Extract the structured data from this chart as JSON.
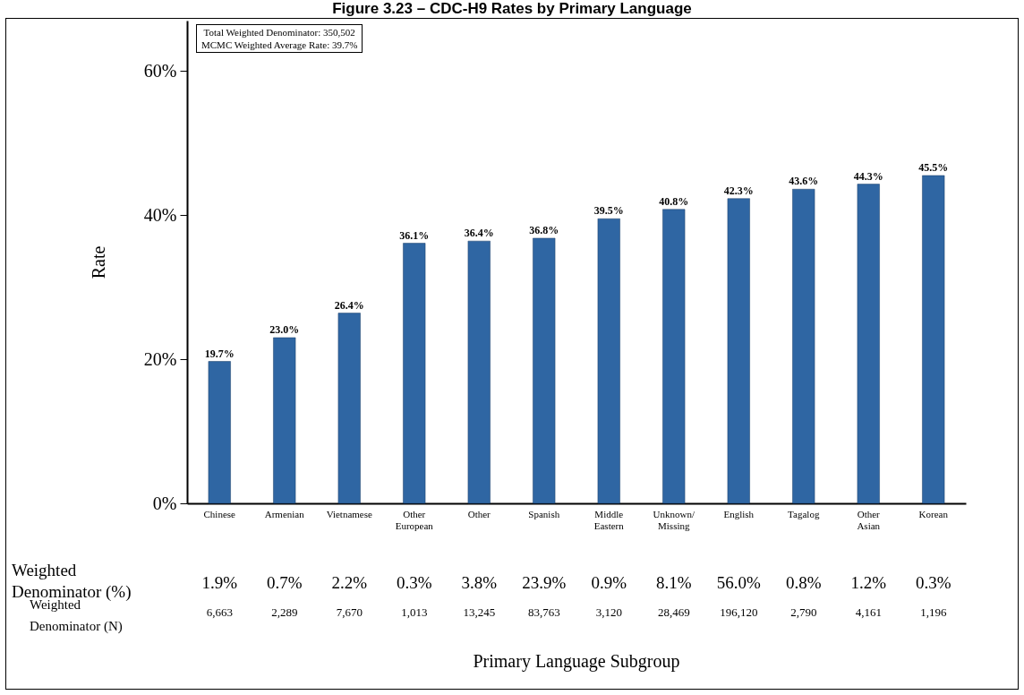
{
  "chart_data": {
    "type": "bar",
    "title": "Figure 3.23 – CDC-H9 Rates by Primary Language",
    "ylabel": "Rate",
    "categories": [
      "Chinese",
      "Armenian",
      "Vietnamese",
      "Other European",
      "Other",
      "Spanish",
      "Middle Eastern",
      "Unknown/Missing",
      "English",
      "Tagalog",
      "Other Asian",
      "Korean"
    ],
    "values": [
      19.7,
      23.0,
      26.4,
      36.1,
      36.4,
      36.8,
      39.5,
      40.8,
      42.3,
      43.6,
      44.3,
      45.5
    ],
    "value_labels": [
      "19.7%",
      "23.0%",
      "26.4%",
      "36.1%",
      "36.4%",
      "36.8%",
      "39.5%",
      "40.8%",
      "42.3%",
      "43.6%",
      "44.3%",
      "45.5%"
    ],
    "color": "#2f66a3",
    "ylim": [
      0,
      67
    ],
    "yticks": [
      {
        "value": 0,
        "label": "0%"
      },
      {
        "value": 20,
        "label": "20%"
      },
      {
        "value": 40,
        "label": "40%"
      },
      {
        "value": 60,
        "label": "60%"
      }
    ],
    "grid": false,
    "annotations": [
      "Total Weighted Denominator: 350,502",
      "MCMC Weighted Average Rate: 39.7%",
      "Weighted Denominator (%)",
      "Weighted Denominator (N)",
      "Primary Language Subgroup",
      "1.9%",
      "0.7%",
      "2.2%",
      "0.3%",
      "3.8%",
      "23.9%",
      "0.9%",
      "8.1%",
      "56.0%",
      "0.8%",
      "1.2%",
      "0.3%",
      "6,663",
      "2,289",
      "7,670",
      "1,013",
      "13,245",
      "83,763",
      "3,120",
      "28,469",
      "196,120",
      "2,790",
      "4,161",
      "1,196"
    ]
  }
}
